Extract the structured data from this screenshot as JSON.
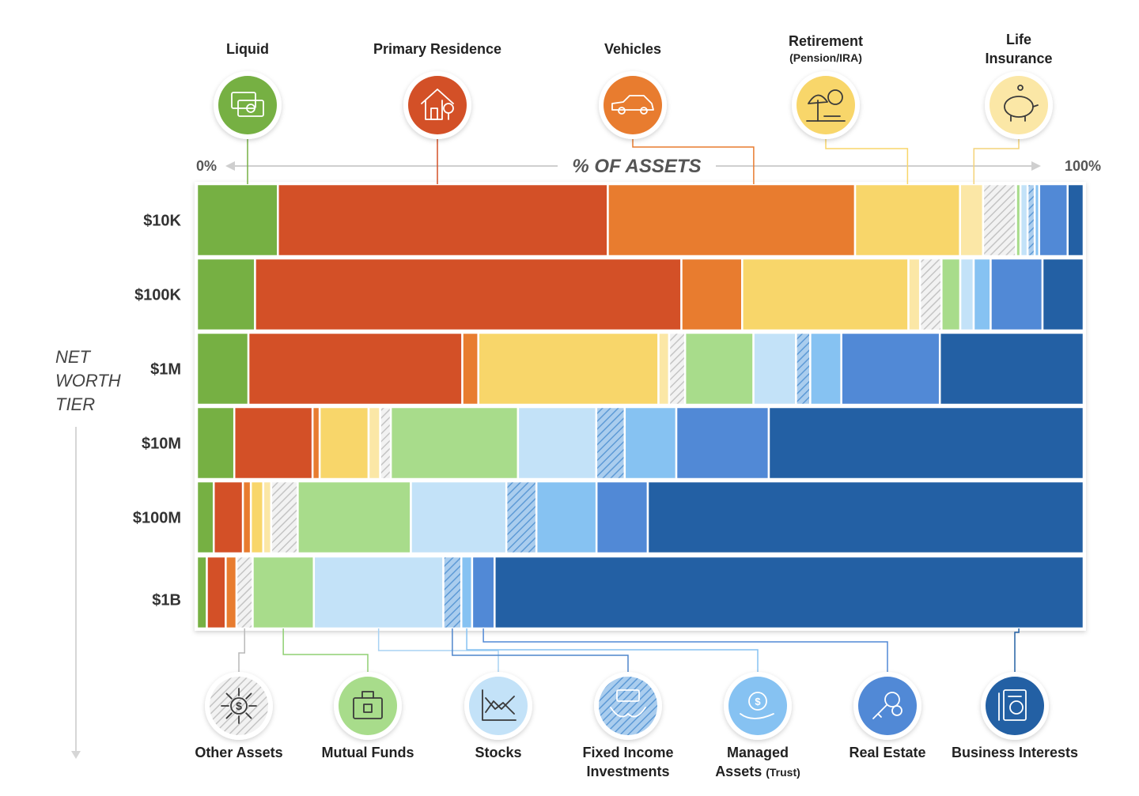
{
  "chart_data": {
    "type": "bar",
    "orientation": "horizontal",
    "stacked": "percent",
    "axis_title": "% OF ASSETS",
    "axis_start_label": "0%",
    "axis_end_label": "100%",
    "xlim": [
      0,
      100
    ],
    "side_label_lines": [
      "NET",
      "WORTH",
      "TIER"
    ],
    "tiers": [
      "$10K",
      "$100K",
      "$1M",
      "$10M",
      "$100M",
      "$1B"
    ],
    "top_categories": [
      {
        "key": "liquid",
        "lines": [
          "Liquid"
        ],
        "sub": "",
        "icon": "cash-icon",
        "color": "#76b043"
      },
      {
        "key": "residence",
        "lines": [
          "Primary Residence"
        ],
        "sub": "",
        "icon": "house-icon",
        "color": "#d35027"
      },
      {
        "key": "vehicles",
        "lines": [
          "Vehicles"
        ],
        "sub": "",
        "icon": "car-icon",
        "color": "#e87c2f"
      },
      {
        "key": "retirement",
        "lines": [
          "Retirement"
        ],
        "sub": "(Pension/IRA)",
        "icon": "beach-umbrella-icon",
        "color": "#f8d66a"
      },
      {
        "key": "insurance",
        "lines": [
          "Life",
          "Insurance"
        ],
        "sub": "",
        "icon": "piggy-bank-icon",
        "color": "#fbe7a6"
      }
    ],
    "bottom_categories": [
      {
        "key": "other",
        "lines": [
          "Other Assets"
        ],
        "sub": "",
        "icon": "dollar-network-icon",
        "color": "#dcdcdc",
        "pattern": "hatch-gray"
      },
      {
        "key": "mutual",
        "lines": [
          "Mutual Funds"
        ],
        "sub": "",
        "icon": "briefcase-icon",
        "color": "#a8dc8b"
      },
      {
        "key": "stocks",
        "lines": [
          "Stocks"
        ],
        "sub": "",
        "icon": "stock-chart-icon",
        "color": "#c3e2f8"
      },
      {
        "key": "fixed",
        "lines": [
          "Fixed Income",
          "Investments"
        ],
        "sub": "",
        "icon": "bond-hands-icon",
        "color": "#80b6e6",
        "pattern": "hatch-blue"
      },
      {
        "key": "managed",
        "lines": [
          "Managed"
        ],
        "sub": "Assets (Trust)",
        "icon": "money-bag-hand-icon",
        "color": "#86c2f2"
      },
      {
        "key": "realestate",
        "lines": [
          "Real Estate"
        ],
        "sub": "",
        "icon": "keys-icon",
        "color": "#5189d6"
      },
      {
        "key": "business",
        "lines": [
          "Business Interests"
        ],
        "sub": "",
        "icon": "certificate-icon",
        "color": "#2360a4"
      }
    ],
    "series": [
      {
        "key": "liquid",
        "values": [
          9.1,
          6.5,
          5.8,
          4.2,
          1.9,
          1.1
        ]
      },
      {
        "key": "residence",
        "values": [
          37.1,
          47.7,
          24.1,
          8.8,
          3.3,
          2.1
        ]
      },
      {
        "key": "vehicles",
        "values": [
          27.8,
          6.8,
          1.8,
          0.8,
          0.9,
          1.2
        ]
      },
      {
        "key": "retirement",
        "values": [
          11.8,
          18.6,
          20.3,
          5.5,
          1.4,
          0.0
        ]
      },
      {
        "key": "insurance",
        "values": [
          2.6,
          1.3,
          1.2,
          1.3,
          0.9,
          0.0
        ]
      },
      {
        "key": "other",
        "values": [
          3.7,
          2.4,
          1.8,
          1.2,
          3.0,
          1.8
        ]
      },
      {
        "key": "mutual",
        "values": [
          0.5,
          2.1,
          7.7,
          14.3,
          12.8,
          6.8
        ]
      },
      {
        "key": "stocks",
        "values": [
          0.8,
          1.5,
          4.8,
          8.8,
          10.8,
          14.4
        ]
      },
      {
        "key": "fixed",
        "values": [
          0.8,
          0.0,
          1.6,
          3.2,
          3.4,
          2.0
        ]
      },
      {
        "key": "managed",
        "values": [
          0.5,
          1.9,
          3.5,
          5.8,
          6.8,
          1.2
        ]
      },
      {
        "key": "realestate",
        "values": [
          3.2,
          5.8,
          11.1,
          10.4,
          5.8,
          2.5
        ]
      },
      {
        "key": "business",
        "values": [
          1.8,
          4.6,
          16.2,
          35.4,
          49.3,
          65.5
        ]
      }
    ]
  }
}
